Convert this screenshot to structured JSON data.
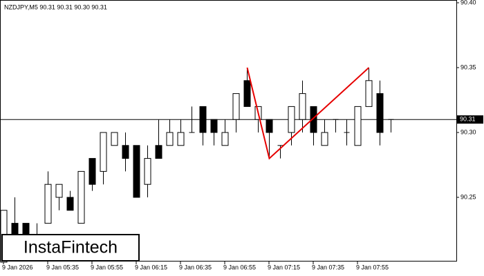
{
  "chart_data": {
    "type": "candlestick",
    "title": "NZDJPY,M5  90.31 90.31 90.30 90.31",
    "categories": [
      "9 Jan 2026",
      null,
      null,
      null,
      "9 Jan 05:35",
      null,
      null,
      null,
      "9 Jan 05:55",
      null,
      null,
      null,
      "9 Jan 06:15",
      null,
      null,
      null,
      "9 Jan 06:35",
      null,
      null,
      null,
      "9 Jan 06:55",
      null,
      null,
      null,
      "9 Jan 07:15",
      null,
      null,
      null,
      "9 Jan 07:35",
      null,
      null,
      null,
      "9 Jan 07:55",
      null,
      null,
      null
    ],
    "open": [
      90.2,
      90.23,
      90.23,
      90.21,
      90.23,
      90.25,
      90.25,
      90.23,
      90.28,
      90.27,
      90.29,
      90.29,
      90.29,
      90.26,
      90.29,
      90.29,
      90.29,
      90.3,
      90.32,
      90.31,
      90.29,
      90.31,
      90.34,
      90.31,
      90.31,
      90.29,
      90.3,
      90.31,
      90.32,
      90.29,
      90.31,
      90.3,
      90.29,
      90.32,
      90.33,
      90.31
    ],
    "high": [
      90.24,
      90.25,
      90.23,
      90.23,
      90.27,
      90.26,
      90.255,
      90.27,
      90.28,
      90.3,
      90.3,
      90.3,
      90.29,
      90.29,
      90.31,
      90.31,
      90.31,
      90.32,
      90.32,
      90.31,
      90.31,
      90.33,
      90.35,
      90.32,
      90.31,
      90.29,
      90.32,
      90.34,
      90.32,
      90.31,
      90.31,
      90.31,
      90.32,
      90.35,
      90.34,
      90.31
    ],
    "low": [
      90.2,
      90.21,
      90.21,
      90.21,
      90.23,
      90.24,
      90.24,
      90.23,
      90.255,
      90.26,
      90.29,
      90.27,
      90.25,
      90.25,
      90.28,
      90.29,
      90.29,
      90.3,
      90.29,
      90.29,
      90.29,
      90.3,
      90.32,
      90.3,
      90.28,
      90.28,
      90.29,
      90.3,
      90.29,
      90.29,
      90.3,
      90.29,
      90.29,
      90.32,
      90.29,
      90.3
    ],
    "close": [
      90.24,
      90.22,
      90.22,
      90.22,
      90.26,
      90.26,
      90.24,
      90.27,
      90.26,
      90.3,
      90.3,
      90.28,
      90.25,
      90.28,
      90.28,
      90.3,
      90.3,
      90.3,
      90.3,
      90.3,
      90.3,
      90.33,
      90.32,
      90.32,
      90.3,
      90.29,
      90.32,
      90.33,
      90.3,
      90.3,
      90.31,
      90.3,
      90.32,
      90.34,
      90.3,
      90.31
    ],
    "pattern": {
      "color": "#e60000",
      "x": [
        22,
        24,
        33
      ],
      "values": [
        90.35,
        90.28,
        90.35
      ]
    },
    "current_price": 90.31,
    "ylim": [
      90.2,
      90.4
    ],
    "yticks": [
      {
        "value": 90.4,
        "label": "90.40"
      },
      90.35,
      {
        "value": 90.3,
        "label": "90.30"
      },
      90.25
    ],
    "logo": "InstaFintech"
  }
}
